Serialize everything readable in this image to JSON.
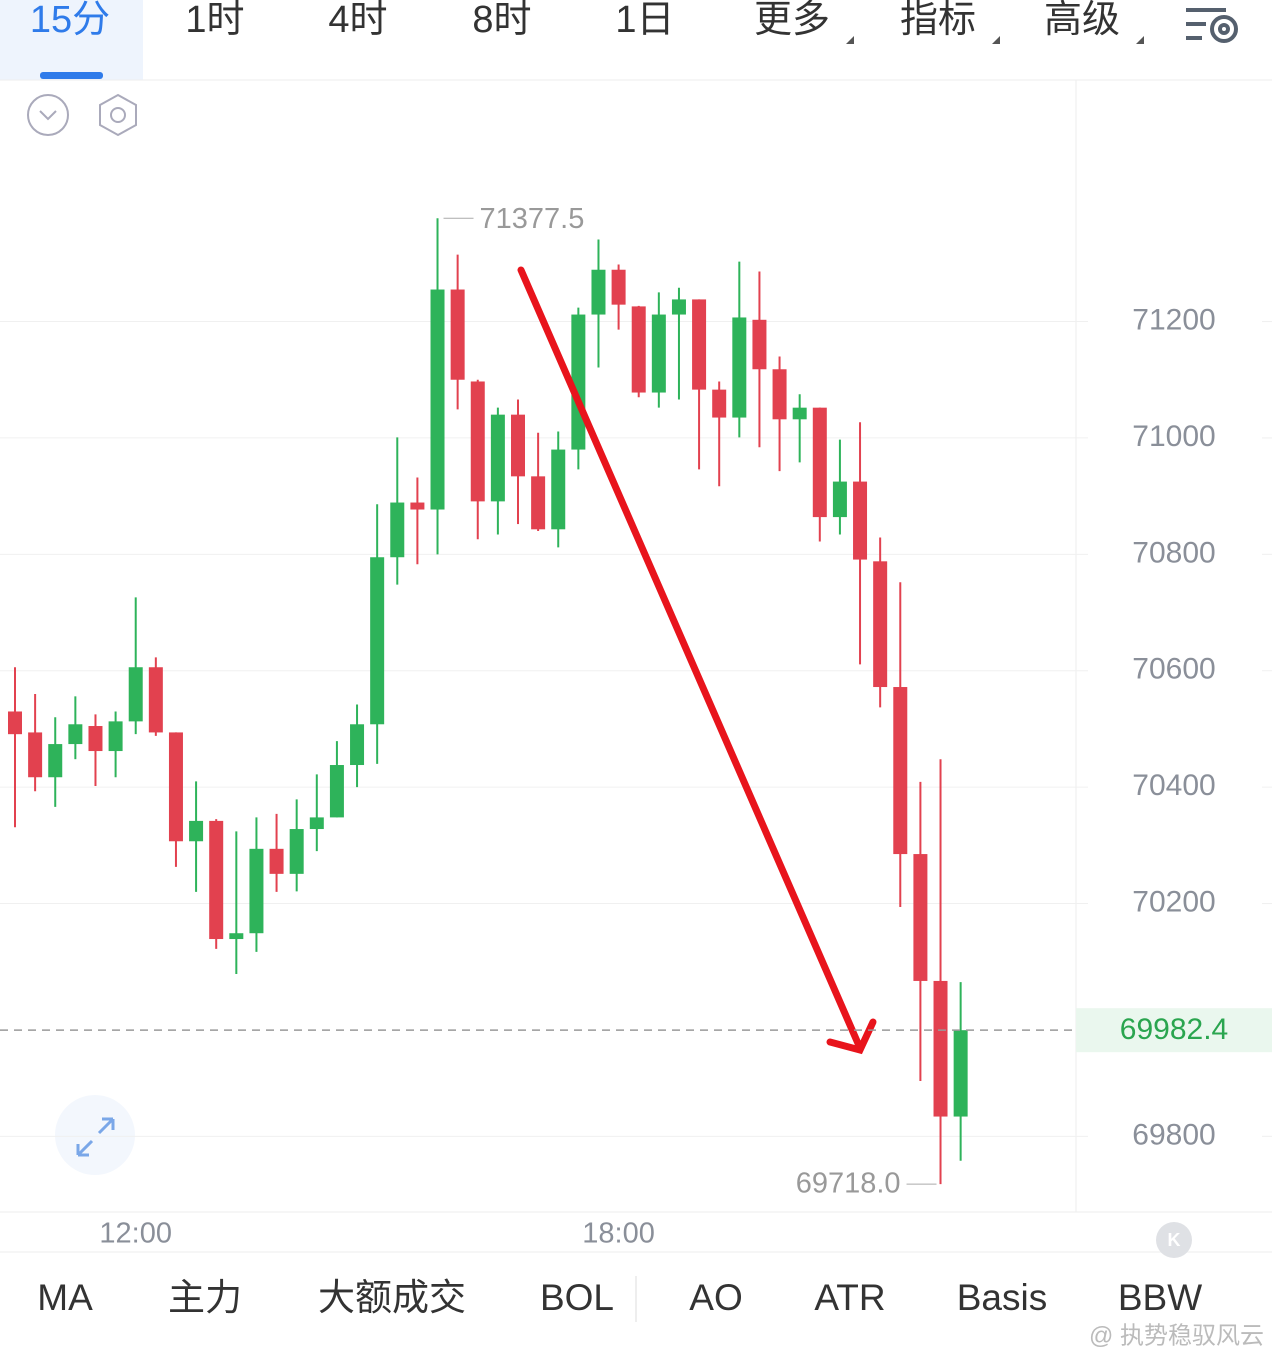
{
  "ui": {
    "tabs": [
      "15分",
      "1时",
      "4时",
      "8时",
      "1日",
      "更多",
      "指标",
      "高级"
    ],
    "indicators": [
      "MA",
      "主力",
      "大额成交",
      "BOL",
      "AO",
      "ATR",
      "Basis",
      "BBW"
    ],
    "watermark": "@ 执势稳驭风云"
  },
  "chart_data": {
    "type": "candlestick",
    "categories": [
      null,
      null,
      null,
      null,
      null,
      null,
      "12:00",
      null,
      null,
      null,
      null,
      null,
      null,
      null,
      null,
      null,
      null,
      null,
      null,
      null,
      null,
      null,
      null,
      null,
      null,
      null,
      null,
      null,
      null,
      null,
      "18:00",
      null,
      null,
      null,
      null,
      null,
      null,
      null,
      null,
      null,
      null,
      null,
      null,
      null,
      null,
      null,
      null,
      null
    ],
    "open": [
      70530,
      70494,
      70417,
      70474,
      70505,
      70462,
      70513,
      70606,
      70494,
      70307,
      70342,
      70139,
      70149,
      70294,
      70251,
      70328,
      70348,
      70438,
      70508,
      70795,
      70889,
      70877,
      71255,
      71097,
      70891,
      71040,
      70934,
      70843,
      70980,
      71212,
      71289,
      71226,
      71078,
      71212,
      71238,
      71083,
      71035,
      71203,
      71118,
      71032,
      71052,
      70864,
      70925,
      70788,
      70572,
      70285,
      70067,
      69834
    ],
    "high": [
      70606,
      70560,
      70520,
      70556,
      70525,
      70530,
      70726,
      70623,
      70494,
      70410,
      70345,
      70324,
      70348,
      70354,
      70379,
      70422,
      70479,
      70542,
      70886,
      71001,
      70932,
      71377.5,
      71315,
      71100,
      71052,
      71066,
      71009,
      71011,
      71224,
      71341,
      71298,
      71227,
      71250,
      71258,
      71238,
      71097,
      71303,
      71286,
      71140,
      71075,
      71052,
      70997,
      71027,
      70829,
      70752,
      70409,
      70448,
      70065
    ],
    "low": [
      70331,
      70393,
      70366,
      70448,
      70402,
      70417,
      70491,
      70488,
      70263,
      70220,
      70122,
      70079,
      70117,
      70220,
      70221,
      70290,
      70348,
      70400,
      70440,
      70748,
      70783,
      70800,
      71049,
      70826,
      70834,
      70852,
      70840,
      70812,
      70946,
      71121,
      71186,
      71070,
      71052,
      71066,
      70946,
      70917,
      71001,
      70984,
      70943,
      70958,
      70822,
      70834,
      70611,
      70537,
      70194,
      69895,
      69718,
      69758
    ],
    "close": [
      70491,
      70417,
      70474,
      70508,
      70462,
      70513,
      70606,
      70494,
      70307,
      70342,
      70139,
      70149,
      70294,
      70251,
      70328,
      70348,
      70438,
      70508,
      70795,
      70889,
      70877,
      71255,
      71100,
      70891,
      71040,
      70934,
      70843,
      70980,
      71212,
      71289,
      71229,
      71078,
      71212,
      71238,
      71083,
      71035,
      71207,
      71118,
      71032,
      71052,
      70864,
      70925,
      70791,
      70572,
      70285,
      70067,
      69834,
      69982.4
    ],
    "up_color": "#2eb35a",
    "down_color": "#e2414f",
    "annotations": {
      "high": "71377.5",
      "low": "69718.0",
      "last": "69982.4"
    },
    "ylim": [
      69670,
      71615
    ],
    "yticks": [
      69800,
      70200,
      70400,
      70600,
      70800,
      71000,
      71200
    ],
    "grid": true
  }
}
